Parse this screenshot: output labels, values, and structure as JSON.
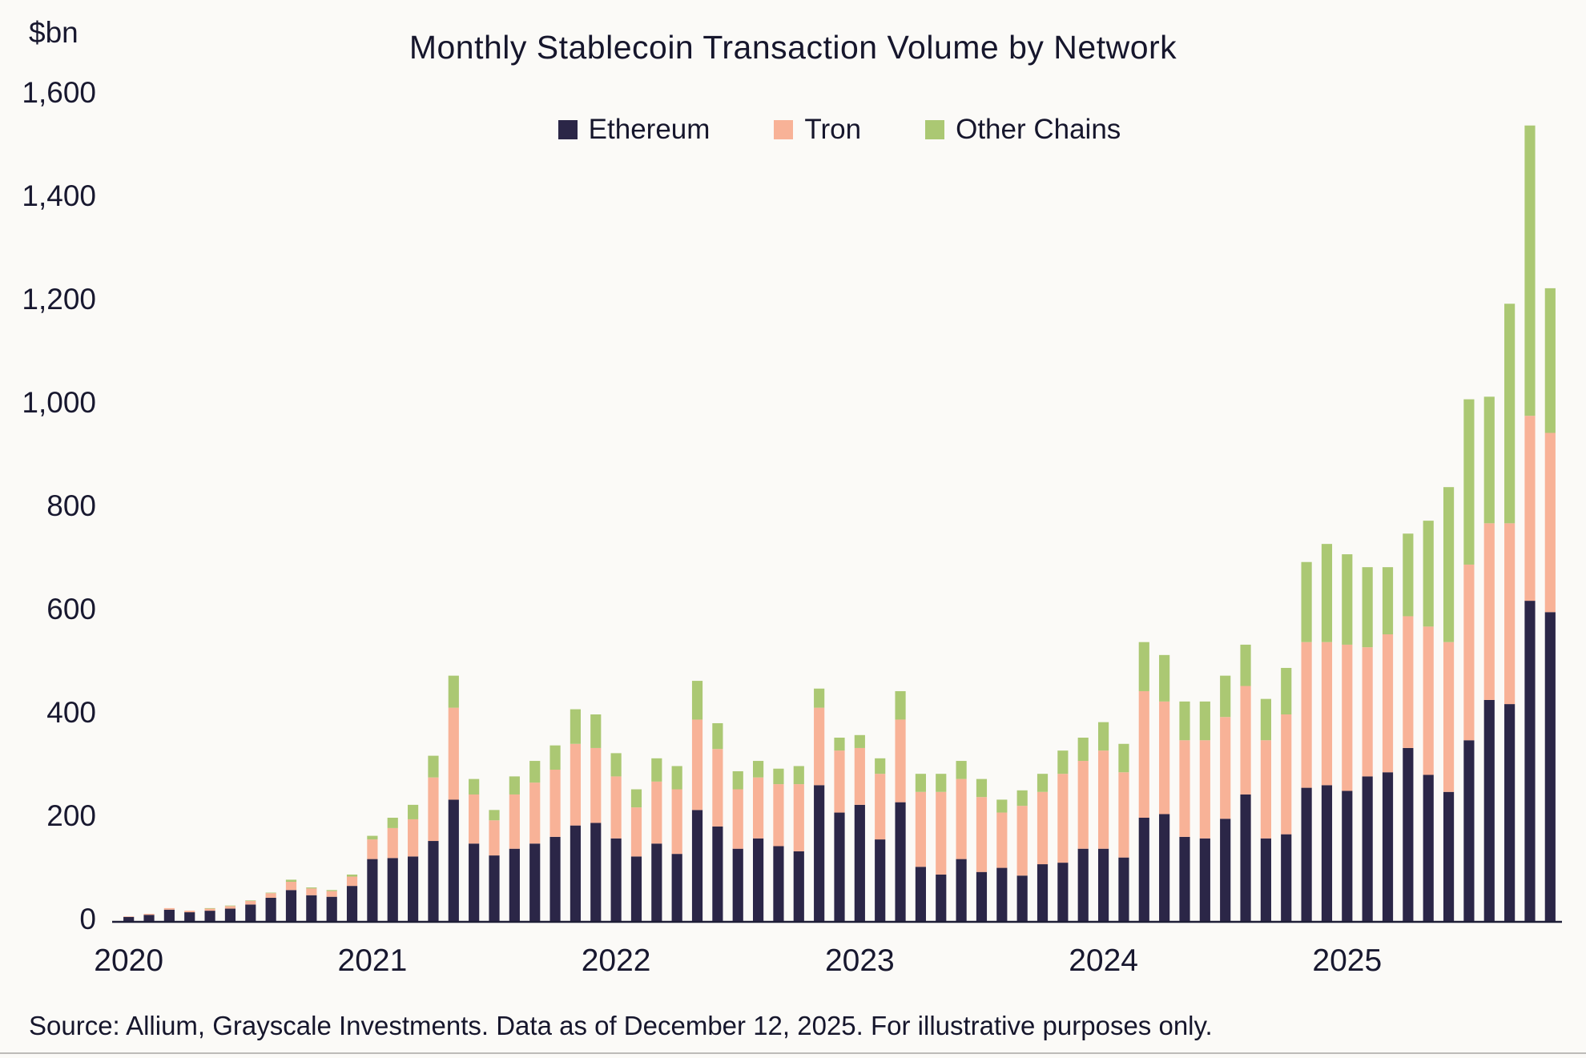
{
  "page": {
    "source_note": "Source: Allium, Grayscale Investments. Data as of December 12, 2025. For illustrative purposes only."
  },
  "chart_data": {
    "type": "bar",
    "stacked": true,
    "title": "Monthly Stablecoin Transaction Volume by Network",
    "ylabel": "$bn",
    "ylim": [
      0,
      1600
    ],
    "y_tick_step": 200,
    "grid": false,
    "legend_position": "top",
    "x_tick_labels": [
      "2020",
      "2021",
      "2022",
      "2023",
      "2024",
      "2025"
    ],
    "x_tick_month_indices": [
      0,
      12,
      24,
      36,
      48,
      60
    ],
    "months": [
      "2020-01",
      "2020-02",
      "2020-03",
      "2020-04",
      "2020-05",
      "2020-06",
      "2020-07",
      "2020-08",
      "2020-09",
      "2020-10",
      "2020-11",
      "2020-12",
      "2021-01",
      "2021-02",
      "2021-03",
      "2021-04",
      "2021-05",
      "2021-06",
      "2021-07",
      "2021-08",
      "2021-09",
      "2021-10",
      "2021-11",
      "2021-12",
      "2022-01",
      "2022-02",
      "2022-03",
      "2022-04",
      "2022-05",
      "2022-06",
      "2022-07",
      "2022-08",
      "2022-09",
      "2022-10",
      "2022-11",
      "2022-12",
      "2023-01",
      "2023-02",
      "2023-03",
      "2023-04",
      "2023-05",
      "2023-06",
      "2023-07",
      "2023-08",
      "2023-09",
      "2023-10",
      "2023-11",
      "2023-12",
      "2024-01",
      "2024-02",
      "2024-03",
      "2024-04",
      "2024-05",
      "2024-06",
      "2024-07",
      "2024-08",
      "2024-09",
      "2024-10",
      "2024-11",
      "2024-12",
      "2025-01",
      "2025-02",
      "2025-03",
      "2025-04",
      "2025-05",
      "2025-06",
      "2025-07",
      "2025-08",
      "2025-09",
      "2025-10",
      "2025-11"
    ],
    "series": [
      {
        "name": "Ethereum",
        "color": "#2b2647",
        "values": [
          8,
          12,
          22,
          17,
          20,
          24,
          32,
          45,
          60,
          50,
          47,
          68,
          120,
          122,
          125,
          155,
          235,
          150,
          127,
          140,
          150,
          163,
          185,
          190,
          160,
          125,
          150,
          130,
          215,
          183,
          140,
          160,
          145,
          135,
          263,
          210,
          225,
          158,
          230,
          105,
          90,
          120,
          95,
          103,
          88,
          110,
          113,
          140,
          140,
          123,
          200,
          207,
          163,
          160,
          198,
          245,
          160,
          168,
          258,
          263,
          252,
          280,
          288,
          335,
          283,
          250,
          350,
          428,
          420,
          620,
          598
        ]
      },
      {
        "name": "Tron",
        "color": "#f8b297",
        "values": [
          1,
          2,
          3,
          3,
          4,
          5,
          7,
          9,
          16,
          13,
          11,
          18,
          38,
          58,
          72,
          123,
          178,
          95,
          68,
          105,
          118,
          130,
          158,
          145,
          120,
          95,
          120,
          125,
          175,
          150,
          115,
          118,
          120,
          130,
          150,
          120,
          110,
          127,
          160,
          145,
          160,
          155,
          145,
          107,
          135,
          140,
          172,
          170,
          190,
          165,
          245,
          218,
          187,
          190,
          197,
          210,
          190,
          232,
          282,
          277,
          283,
          250,
          267,
          255,
          287,
          290,
          340,
          342,
          350,
          358,
          347
        ]
      },
      {
        "name": "Other Chains",
        "color": "#abc873",
        "values": [
          0,
          0,
          0,
          0,
          1,
          1,
          1,
          1,
          4,
          2,
          2,
          4,
          7,
          20,
          28,
          42,
          62,
          30,
          20,
          35,
          42,
          47,
          67,
          65,
          45,
          35,
          45,
          45,
          75,
          50,
          35,
          32,
          30,
          35,
          37,
          25,
          25,
          30,
          55,
          35,
          35,
          35,
          35,
          25,
          30,
          35,
          45,
          45,
          55,
          55,
          95,
          90,
          75,
          75,
          80,
          80,
          80,
          90,
          155,
          190,
          175,
          155,
          130,
          160,
          205,
          300,
          320,
          245,
          425,
          562,
          280
        ]
      }
    ]
  }
}
